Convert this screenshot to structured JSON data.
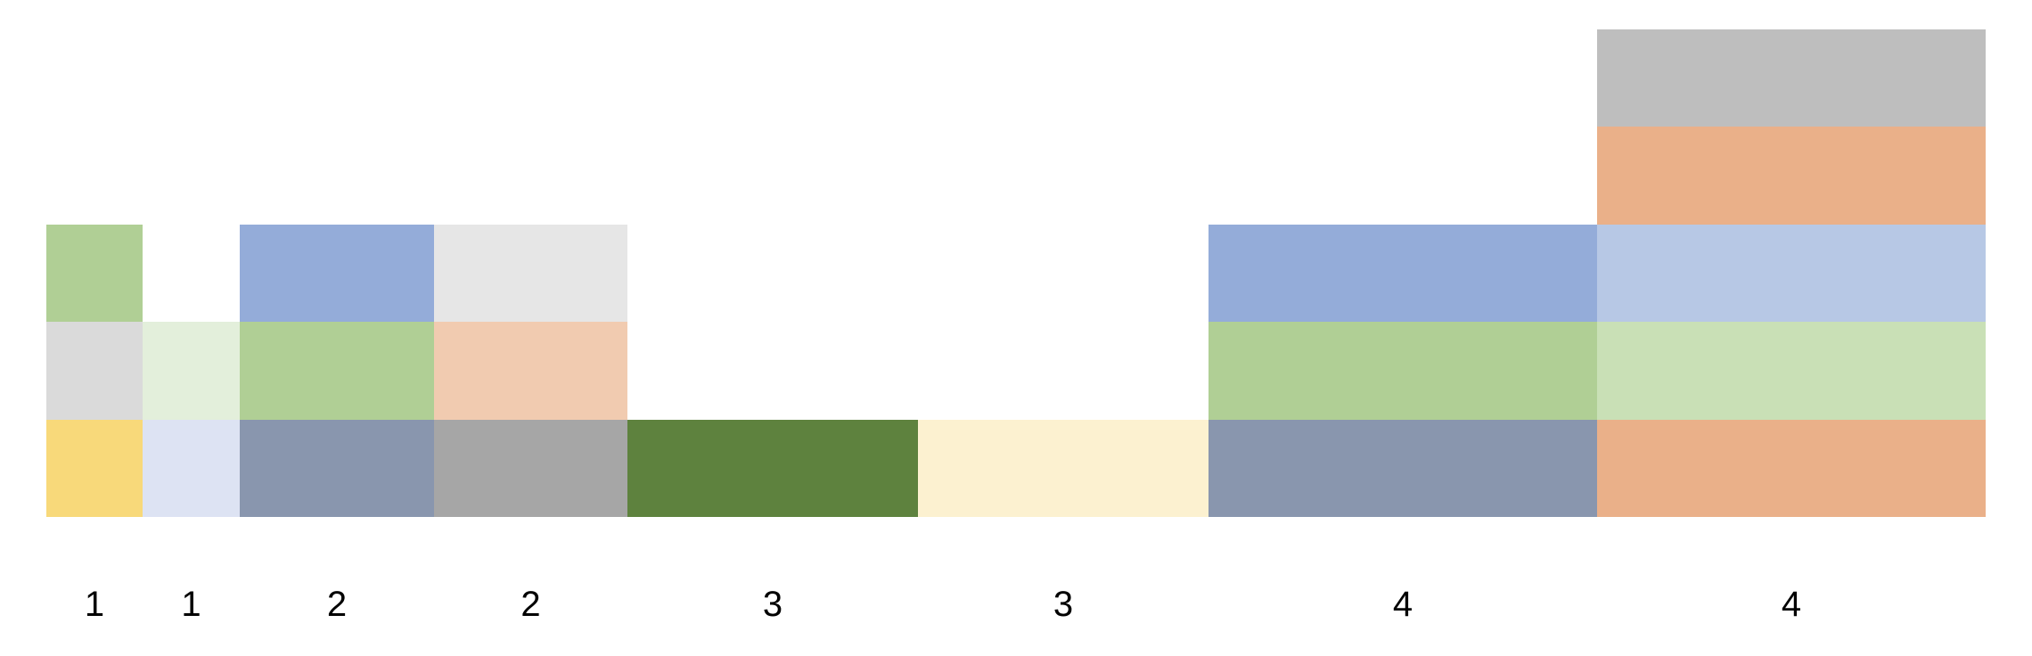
{
  "columns": [
    {
      "label": "1",
      "blocks": [
        "#f8d97a",
        "#dadada",
        "#b0cf95"
      ]
    },
    {
      "label": "1",
      "blocks": [
        "#dde3f3",
        "#e3efdb"
      ]
    },
    {
      "label": "2",
      "blocks": [
        "#8996ae",
        "#b0cf95",
        "#94acd9"
      ]
    },
    {
      "label": "2",
      "blocks": [
        "#a6a6a6",
        "#f1cbb0",
        "#e6e6e6"
      ]
    },
    {
      "label": "3",
      "blocks": [
        "#5e823e"
      ]
    },
    {
      "label": "3",
      "blocks": [
        "#fcf1d0"
      ]
    },
    {
      "label": "4",
      "blocks": [
        "#8996ae",
        "#b0cf95",
        "#94acd9"
      ]
    },
    {
      "label": "4",
      "blocks": [
        "#eab089",
        "#c9e0b6",
        "#b7c8e5",
        "#eab089",
        "#bebebe"
      ]
    }
  ]
}
